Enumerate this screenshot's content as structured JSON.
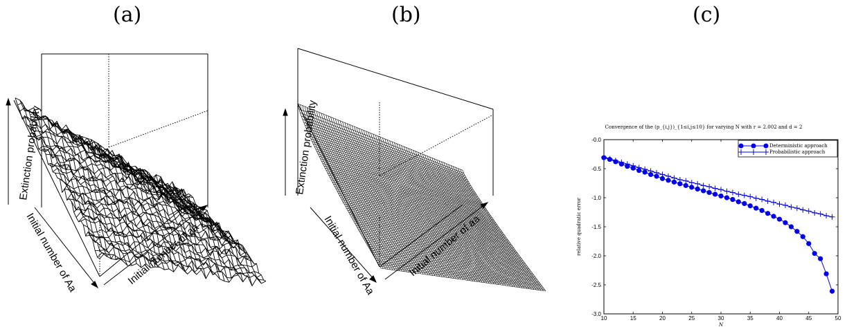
{
  "panels": {
    "a": {
      "label": "(a)"
    },
    "b": {
      "label": "(b)"
    },
    "c": {
      "label": "(c)"
    }
  },
  "surface_a": {
    "zlabel": "Extinction probability",
    "xlabel": "Initial number of Aa",
    "ylabel": "Initial number of aa"
  },
  "surface_b": {
    "zlabel": "Extinction probability",
    "xlabel": "Initial number of Aa",
    "ylabel": "Initial number of aa"
  },
  "chart_data": {
    "type": "line",
    "title": "Convergence of the (p_{i,j})_{1≤i,j≤10} for varying N with r = 2.002 and d = 2",
    "xlabel": "N",
    "ylabel": "relative quadratic error",
    "xlim": [
      10,
      50
    ],
    "ylim": [
      -3.0,
      0.0
    ],
    "xticks": [
      10,
      15,
      20,
      25,
      30,
      35,
      40,
      45,
      50
    ],
    "yticks": [
      "-0.0",
      "-0.5",
      "-1.0",
      "-1.5",
      "-2.0",
      "-2.5",
      "-3.0"
    ],
    "legend_position": "top-right",
    "color": "#0000ee",
    "series": [
      {
        "name": "Deterministic approach",
        "marker": "circle",
        "x": [
          10,
          11,
          12,
          13,
          14,
          15,
          16,
          17,
          18,
          19,
          20,
          21,
          22,
          23,
          24,
          25,
          26,
          27,
          28,
          29,
          30,
          31,
          32,
          33,
          34,
          35,
          36,
          37,
          38,
          39,
          40,
          41,
          42,
          43,
          44,
          45,
          46,
          47,
          48,
          49
        ],
        "y": [
          -0.31,
          -0.34,
          -0.38,
          -0.42,
          -0.46,
          -0.49,
          -0.53,
          -0.56,
          -0.6,
          -0.63,
          -0.67,
          -0.7,
          -0.73,
          -0.76,
          -0.79,
          -0.82,
          -0.85,
          -0.88,
          -0.91,
          -0.94,
          -0.97,
          -1.0,
          -1.03,
          -1.07,
          -1.1,
          -1.14,
          -1.18,
          -1.22,
          -1.27,
          -1.32,
          -1.37,
          -1.43,
          -1.5,
          -1.58,
          -1.67,
          -1.79,
          -1.96,
          -2.05,
          -2.31,
          -2.61
        ]
      },
      {
        "name": "Probabilistic approach",
        "marker": "plus",
        "x": [
          10,
          11,
          12,
          13,
          14,
          15,
          16,
          17,
          18,
          19,
          20,
          21,
          22,
          23,
          24,
          25,
          26,
          27,
          28,
          29,
          30,
          31,
          32,
          33,
          34,
          35,
          36,
          37,
          38,
          39,
          40,
          41,
          42,
          43,
          44,
          45,
          46,
          47,
          48,
          49
        ],
        "y": [
          -0.3,
          -0.33,
          -0.36,
          -0.39,
          -0.42,
          -0.45,
          -0.48,
          -0.51,
          -0.54,
          -0.57,
          -0.6,
          -0.63,
          -0.66,
          -0.69,
          -0.71,
          -0.74,
          -0.76,
          -0.79,
          -0.81,
          -0.84,
          -0.86,
          -0.89,
          -0.91,
          -0.94,
          -0.96,
          -0.98,
          -1.01,
          -1.03,
          -1.06,
          -1.08,
          -1.11,
          -1.13,
          -1.16,
          -1.18,
          -1.21,
          -1.23,
          -1.26,
          -1.28,
          -1.31,
          -1.33
        ]
      }
    ]
  }
}
